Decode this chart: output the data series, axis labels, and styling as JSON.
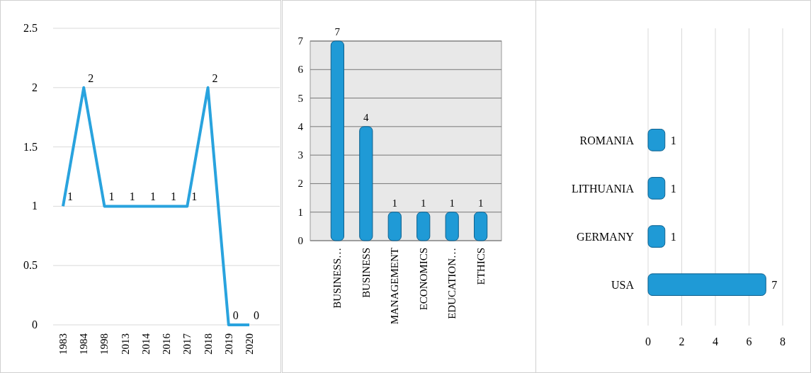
{
  "chart_data": [
    {
      "type": "line",
      "categories": [
        "1983",
        "1984",
        "1998",
        "2013",
        "2014",
        "2016",
        "2017",
        "2018",
        "2019",
        "2020"
      ],
      "values": [
        1,
        2,
        1,
        1,
        1,
        1,
        1,
        2,
        0,
        0
      ],
      "color": "#29a3de",
      "ylim": [
        0,
        2.5
      ],
      "yticks": [
        0,
        0.5,
        1,
        1.5,
        2,
        2.5
      ],
      "grid": "y",
      "data_labels": true
    },
    {
      "type": "bar",
      "categories": [
        "BUSINESS…",
        "BUSINESS",
        "MANAGEMENT",
        "ECONOMICS",
        "EDUCATION…",
        "ETHICS"
      ],
      "values": [
        7,
        4,
        1,
        1,
        1,
        1
      ],
      "color": "#1f9ad6",
      "ylim": [
        0,
        7
      ],
      "yticks": [
        0,
        1,
        2,
        3,
        4,
        5,
        6,
        7
      ],
      "grid": "y",
      "data_labels": true
    },
    {
      "type": "bar",
      "orientation": "horizontal",
      "categories": [
        "ROMANIA",
        "LITHUANIA",
        "GERMANY",
        "USA"
      ],
      "values": [
        1,
        1,
        1,
        7
      ],
      "color": "#1f9ad6",
      "xlim": [
        0,
        8
      ],
      "xticks": [
        0,
        2,
        4,
        6,
        8
      ],
      "grid": "x",
      "data_labels": true
    }
  ]
}
